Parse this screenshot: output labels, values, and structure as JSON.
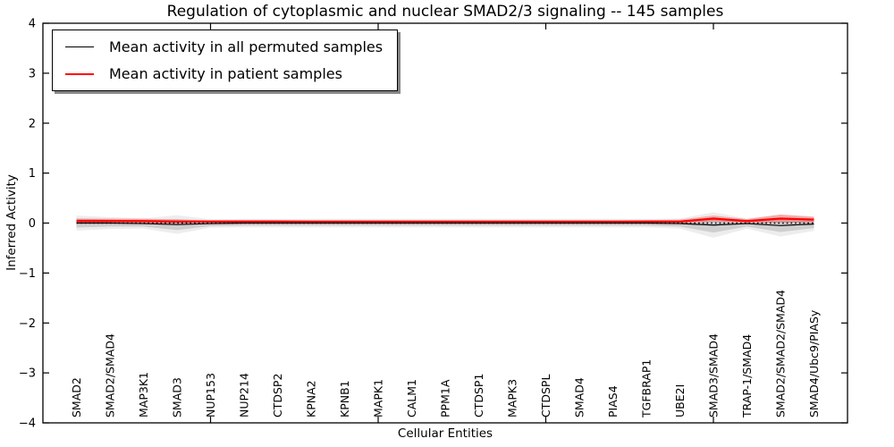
{
  "chart_data": {
    "type": "line",
    "title": "Regulation of cytoplasmic and nuclear SMAD2/3 signaling -- 145 samples",
    "xlabel": "Cellular Entities",
    "ylabel": "Inferred Activity",
    "ylim": [
      -4,
      4
    ],
    "yticks": [
      4,
      3,
      2,
      1,
      0,
      -1,
      -2,
      -3,
      -4
    ],
    "ytick_labels": [
      "4",
      "3",
      "2",
      "1",
      "0",
      "−1",
      "−2",
      "−3",
      "−4"
    ],
    "xticks_at_category_number": [
      5,
      10,
      15,
      20
    ],
    "grid": false,
    "legend_position": "upper left",
    "categories": [
      "SMAD2",
      "SMAD2/SMAD4",
      "MAP3K1",
      "SMAD3",
      "NUP153",
      "NUP214",
      "CTDSP2",
      "KPNA2",
      "KPNB1",
      "MAPK1",
      "CALM1",
      "PPM1A",
      "CTDSP1",
      "MAPK3",
      "CTDSPL",
      "SMAD4",
      "PIAS4",
      "TGFBRAP1",
      "UBE2I",
      "SMAD3/SMAD4",
      "TRAP-1/SMAD4",
      "SMAD2/SMAD2/SMAD4",
      "SMAD4/Ubc9/PIASy"
    ],
    "series": [
      {
        "name": "Mean activity in all permuted samples",
        "color": "#000000",
        "style": "solid",
        "values": [
          0,
          0,
          -0.01,
          -0.03,
          -0.01,
          0,
          0,
          0,
          0,
          0,
          0,
          0,
          0,
          0,
          0,
          0,
          0,
          0,
          -0.01,
          -0.04,
          -0.01,
          -0.05,
          -0.02
        ]
      },
      {
        "name": "Mean activity in patient samples",
        "color": "#ff0000",
        "style": "solid",
        "values": [
          0.04,
          0.04,
          0.04,
          0.03,
          0.03,
          0.03,
          0.03,
          0.03,
          0.03,
          0.03,
          0.03,
          0.03,
          0.03,
          0.03,
          0.03,
          0.03,
          0.03,
          0.03,
          0.03,
          0.09,
          0.04,
          0.09,
          0.07
        ]
      }
    ],
    "bands": [
      {
        "name": "permuted-samples-std",
        "around_series": 0,
        "color": "#000000",
        "halfwidths": [
          0.09,
          0.07,
          0.06,
          0.11,
          0.05,
          0.05,
          0.05,
          0.05,
          0.05,
          0.05,
          0.05,
          0.05,
          0.05,
          0.05,
          0.05,
          0.05,
          0.05,
          0.05,
          0.06,
          0.15,
          0.06,
          0.13,
          0.08
        ]
      },
      {
        "name": "patient-samples-std",
        "around_series": 1,
        "color": "#ff0000",
        "halfwidths": [
          0.05,
          0.05,
          0.05,
          0.04,
          0.03,
          0.03,
          0.03,
          0.02,
          0.02,
          0.02,
          0.02,
          0.02,
          0.02,
          0.02,
          0.02,
          0.02,
          0.02,
          0.03,
          0.04,
          0.06,
          0.04,
          0.08,
          0.06
        ]
      }
    ],
    "baseline": {
      "y": 0,
      "style": "dotted",
      "color": "#000000"
    }
  }
}
